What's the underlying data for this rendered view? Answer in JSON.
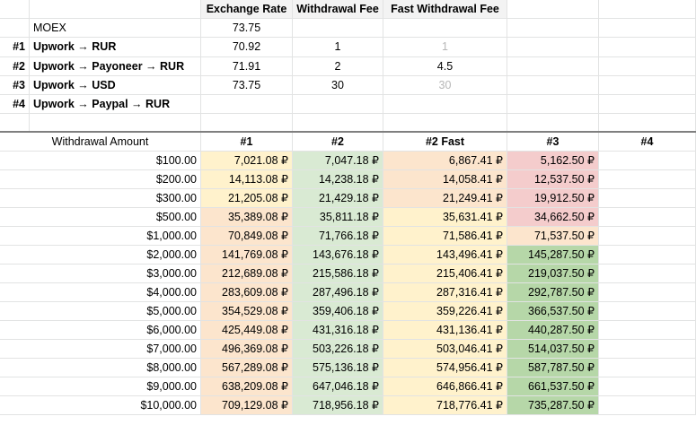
{
  "top": {
    "headers": [
      "Exchange Rate",
      "Withdrawal Fee",
      "Fast Withdrawal Fee"
    ],
    "rows": [
      {
        "num": "",
        "label": "MOEX",
        "rate": "73.75",
        "fee": "",
        "fast": ""
      },
      {
        "num": "#1",
        "label": "Upwork → RUR",
        "rate": "70.92",
        "fee": "1",
        "fast": "1"
      },
      {
        "num": "#2",
        "label": "Upwork → Payoneer → RUR",
        "rate": "71.91",
        "fee": "2",
        "fast": "4.5"
      },
      {
        "num": "#3",
        "label": "Upwork → USD",
        "rate": "73.75",
        "fee": "30",
        "fast": "30"
      },
      {
        "num": "#4",
        "label": "Upwork → Paypal  → RUR",
        "rate": "",
        "fee": "",
        "fast": ""
      }
    ]
  },
  "table": {
    "headers": [
      "Withdrawal Amount",
      "#1",
      "#2",
      "#2 Fast",
      "#3",
      "#4"
    ],
    "rows": [
      [
        "$100.00",
        "7,021.08 ₽",
        "7,047.18 ₽",
        "6,867.41 ₽",
        "5,162.50 ₽",
        ""
      ],
      [
        "$200.00",
        "14,113.08 ₽",
        "14,238.18 ₽",
        "14,058.41 ₽",
        "12,537.50 ₽",
        ""
      ],
      [
        "$300.00",
        "21,205.08 ₽",
        "21,429.18 ₽",
        "21,249.41 ₽",
        "19,912.50 ₽",
        ""
      ],
      [
        "$500.00",
        "35,389.08 ₽",
        "35,811.18 ₽",
        "35,631.41 ₽",
        "34,662.50 ₽",
        ""
      ],
      [
        "$1,000.00",
        "70,849.08 ₽",
        "71,766.18 ₽",
        "71,586.41 ₽",
        "71,537.50 ₽",
        ""
      ],
      [
        "$2,000.00",
        "141,769.08 ₽",
        "143,676.18 ₽",
        "143,496.41 ₽",
        "145,287.50 ₽",
        ""
      ],
      [
        "$3,000.00",
        "212,689.08 ₽",
        "215,586.18 ₽",
        "215,406.41 ₽",
        "219,037.50 ₽",
        ""
      ],
      [
        "$4,000.00",
        "283,609.08 ₽",
        "287,496.18 ₽",
        "287,316.41 ₽",
        "292,787.50 ₽",
        ""
      ],
      [
        "$5,000.00",
        "354,529.08 ₽",
        "359,406.18 ₽",
        "359,226.41 ₽",
        "366,537.50 ₽",
        ""
      ],
      [
        "$6,000.00",
        "425,449.08 ₽",
        "431,316.18 ₽",
        "431,136.41 ₽",
        "440,287.50 ₽",
        ""
      ],
      [
        "$7,000.00",
        "496,369.08 ₽",
        "503,226.18 ₽",
        "503,046.41 ₽",
        "514,037.50 ₽",
        ""
      ],
      [
        "$8,000.00",
        "567,289.08 ₽",
        "575,136.18 ₽",
        "574,956.41 ₽",
        "587,787.50 ₽",
        ""
      ],
      [
        "$9,000.00",
        "638,209.08 ₽",
        "647,046.18 ₽",
        "646,866.41 ₽",
        "661,537.50 ₽",
        ""
      ],
      [
        "$10,000.00",
        "709,129.08 ₽",
        "718,956.18 ₽",
        "718,776.41 ₽",
        "735,287.50 ₽",
        ""
      ]
    ],
    "fills": [
      [
        "#fff2cc",
        "#d9ead3",
        "#fce5cd",
        "#f4cccc"
      ],
      [
        "#fff2cc",
        "#d9ead3",
        "#fce5cd",
        "#f4cccc"
      ],
      [
        "#fff2cc",
        "#d9ead3",
        "#fce5cd",
        "#f4cccc"
      ],
      [
        "#fce5cd",
        "#d9ead3",
        "#fff2cc",
        "#f4cccc"
      ],
      [
        "#fce5cd",
        "#d9ead3",
        "#fff2cc",
        "#fce5cd"
      ],
      [
        "#fce5cd",
        "#d9ead3",
        "#fff2cc",
        "#b6d7a8"
      ],
      [
        "#fce5cd",
        "#d9ead3",
        "#fff2cc",
        "#b6d7a8"
      ],
      [
        "#fce5cd",
        "#d9ead3",
        "#fff2cc",
        "#b6d7a8"
      ],
      [
        "#fce5cd",
        "#d9ead3",
        "#fff2cc",
        "#b6d7a8"
      ],
      [
        "#fce5cd",
        "#d9ead3",
        "#fff2cc",
        "#b6d7a8"
      ],
      [
        "#fce5cd",
        "#d9ead3",
        "#fff2cc",
        "#b6d7a8"
      ],
      [
        "#fce5cd",
        "#d9ead3",
        "#fff2cc",
        "#b6d7a8"
      ],
      [
        "#fce5cd",
        "#d9ead3",
        "#fff2cc",
        "#b6d7a8"
      ],
      [
        "#fce5cd",
        "#d9ead3",
        "#fff2cc",
        "#b6d7a8"
      ]
    ]
  },
  "colors": {
    "header_fill": "#f3f3f3",
    "gray_text": "#b7b7b7",
    "grid": "#e2e3e3",
    "freeze_line": "#7f7f7f"
  }
}
